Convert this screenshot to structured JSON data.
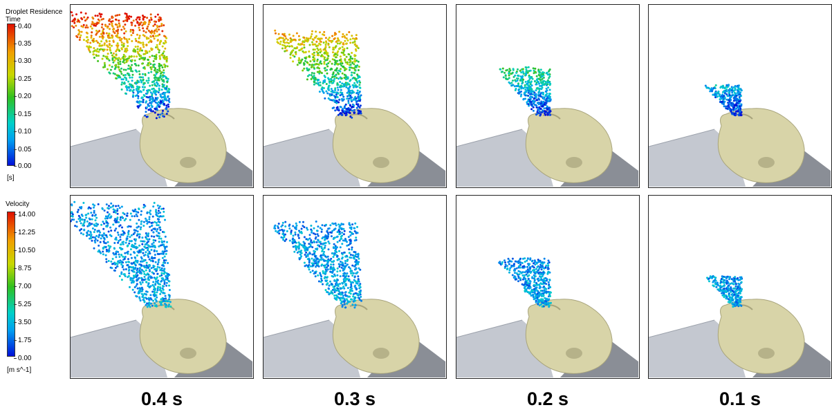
{
  "legends": [
    {
      "title_line1": "Droplet Residence",
      "title_line2": "Time",
      "ticks": [
        "0.40",
        "0.35",
        "0.30",
        "0.25",
        "0.20",
        "0.15",
        "0.10",
        "0.05",
        "0.00"
      ],
      "unit": "[s]"
    },
    {
      "title_line1": "Velocity",
      "title_line2": "",
      "ticks": [
        "14.00",
        "12.25",
        "10.50",
        "8.75",
        "7.00",
        "5.25",
        "3.50",
        "1.75",
        "0.00"
      ],
      "unit": "[m s^-1]"
    }
  ],
  "columns": [
    {
      "label": "0.4 s",
      "spray_scale": 1.0
    },
    {
      "label": "0.3 s",
      "spray_scale": 0.8
    },
    {
      "label": "0.2 s",
      "spray_scale": 0.42
    },
    {
      "label": "0.1 s",
      "spray_scale": 0.24
    }
  ],
  "colors": {
    "head": "#d8d4a8",
    "head_shade": "#a8a47c",
    "cylinder": "#c4c8d0",
    "floor": "#8a8e96"
  }
}
